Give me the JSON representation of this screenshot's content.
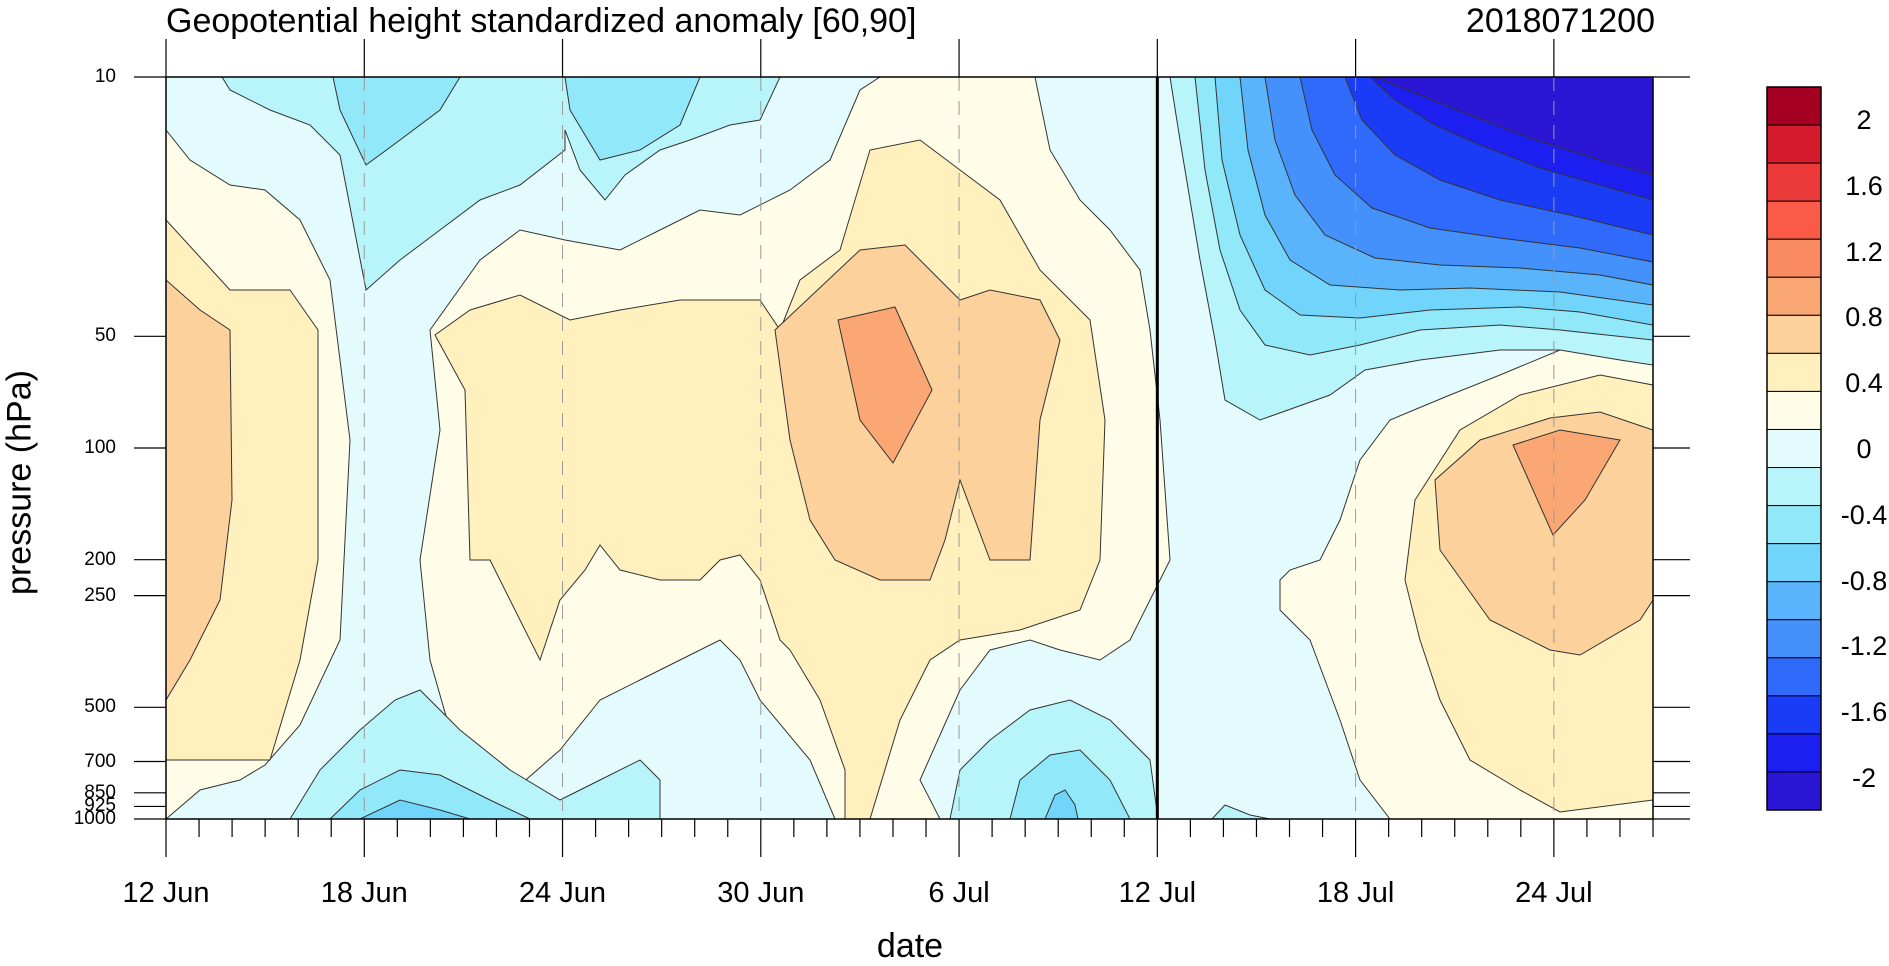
{
  "chart_data": {
    "type": "heatmap",
    "title": "Geopotential height standardized anomaly [60,90]",
    "date_label": "2018071200",
    "xlabel": "date",
    "ylabel": "pressure (hPa)",
    "x_tick_labels": [
      "12 Jun",
      "18 Jun",
      "24 Jun",
      "30 Jun",
      "6 Jul",
      "12 Jul",
      "18 Jul",
      "24 Jul"
    ],
    "x_range": [
      "12 Jun",
      "27 Jul"
    ],
    "y_tick_labels": [
      "10",
      "50",
      "100",
      "200",
      "250",
      "500",
      "700",
      "850",
      "925",
      "1000"
    ],
    "y_scale": "log",
    "y_range": [
      1000,
      10
    ],
    "current_date_line": "12 Jul",
    "colorbar": {
      "labels": [
        "2",
        "1.6",
        "1.2",
        "0.8",
        "0.4",
        "0",
        "-0.4",
        "-0.8",
        "-1.2",
        "-1.6",
        "-2"
      ],
      "colors": [
        "#a50021",
        "#d41c2c",
        "#ec3a3a",
        "#fa5a48",
        "#f98a62",
        "#faa774",
        "#fcd19b",
        "#fff0bd",
        "#fffde8",
        "#e4fbfd",
        "#b7f5fb",
        "#91e8f9",
        "#71d5fb",
        "#5ab4fb",
        "#4491fb",
        "#2f6afb",
        "#1b3cf7",
        "#1d1ef0",
        "#2a16d4"
      ]
    }
  }
}
